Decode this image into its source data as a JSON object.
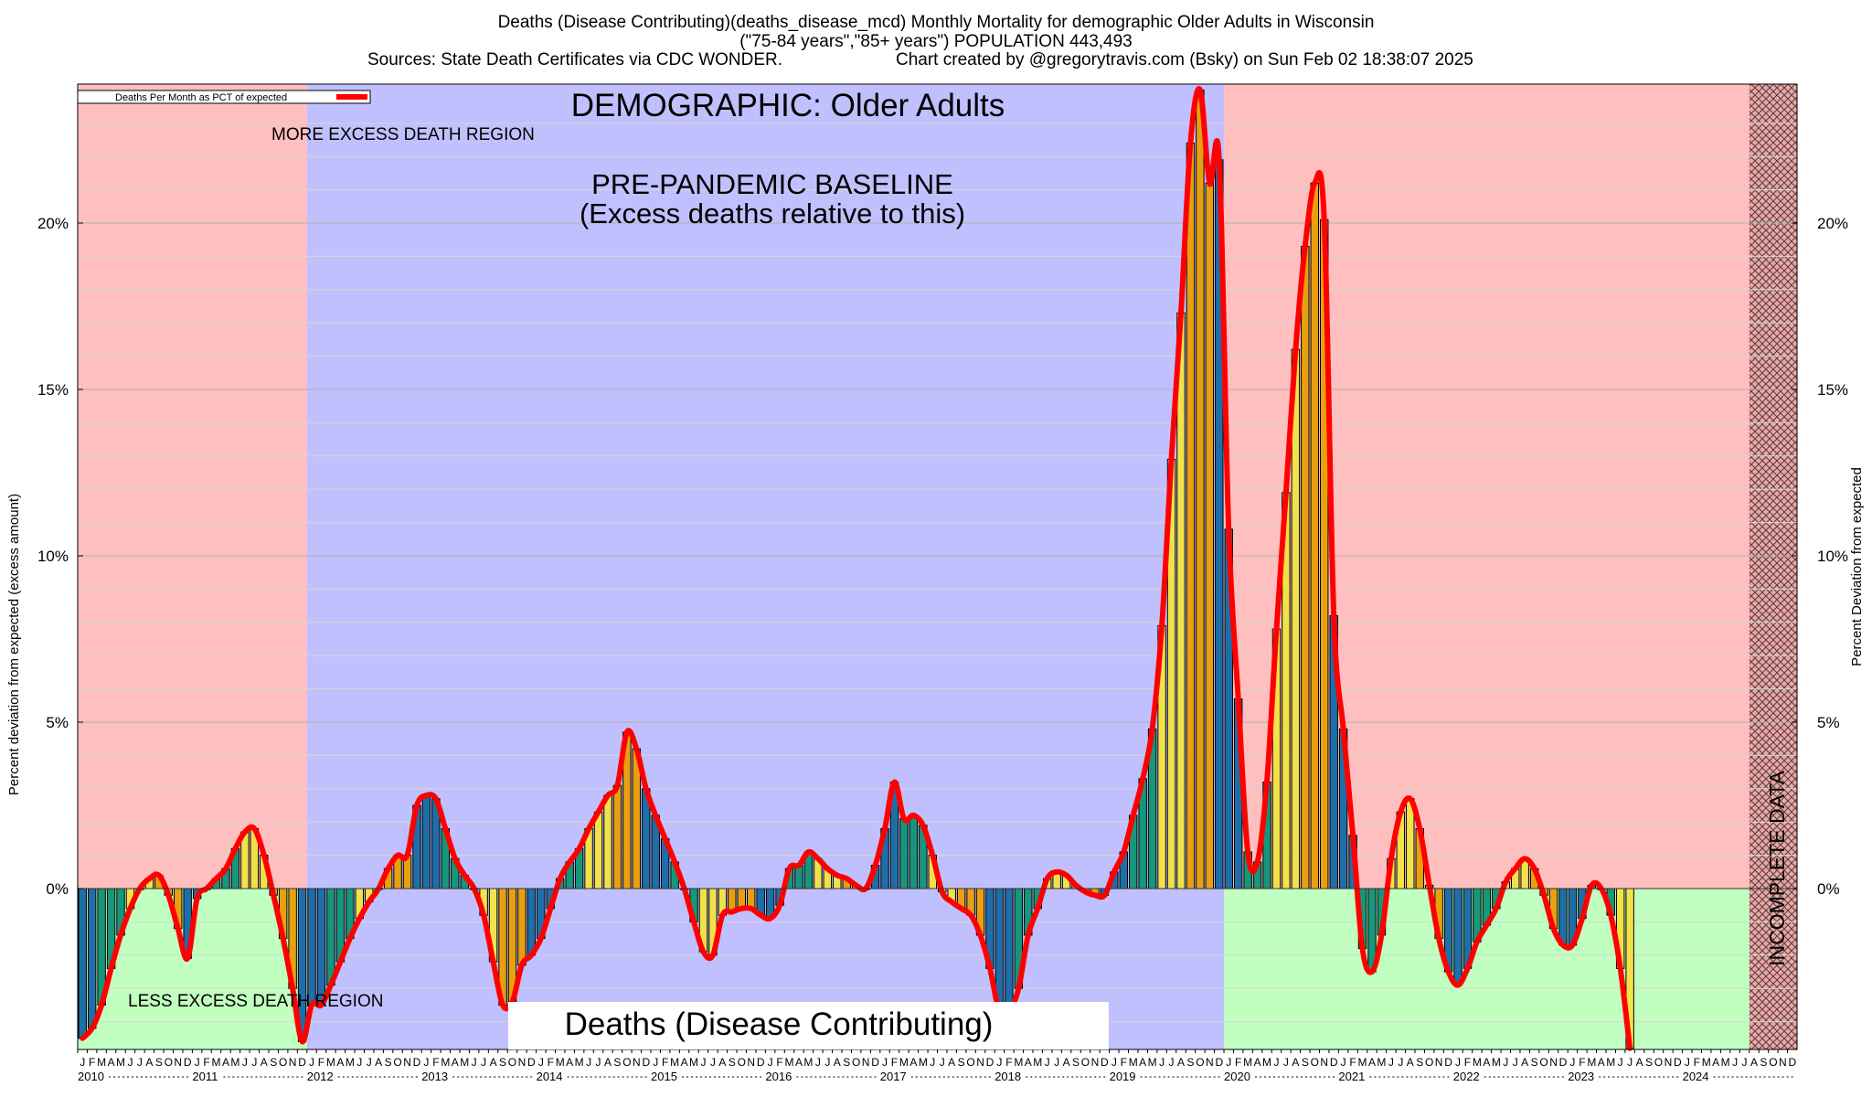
{
  "header": {
    "line1": "Deaths (Disease Contributing)(deaths_disease_mcd) Monthly Mortality for demographic Older Adults in Wisconsin",
    "line2": "(\"75-84 years\",\"85+ years\") POPULATION 443,493",
    "line3_left": "Sources: State Death Certificates via CDC WONDER.",
    "line3_right": "Chart created by @gregorytravis.com (Bsky) on Sun Feb 02 18:38:07 2025"
  },
  "annotations": {
    "demographic": "DEMOGRAPHIC: Older Adults",
    "baseline_line1": "PRE-PANDEMIC BASELINE",
    "baseline_line2": "(Excess deaths relative to this)",
    "more_excess": "MORE EXCESS DEATH REGION",
    "less_excess": "LESS EXCESS DEATH REGION",
    "incomplete": "INCOMPLETE DATA",
    "bottom_label": "Deaths (Disease Contributing)"
  },
  "chart_data": {
    "type": "bar",
    "title": "Deaths (Disease Contributing)(deaths_disease_mcd) Monthly Mortality for demographic Older Adults in Wisconsin",
    "ylabel_left": "Percent deviation from expected (excess amount)",
    "ylabel_right": "Percent Deviation from expected",
    "legend": {
      "label": "Deaths Per Month as PCT of expected",
      "position": "top-left"
    },
    "ylim": [
      -4.8,
      24.0
    ],
    "y_ticks": [
      0,
      5,
      10,
      15,
      20
    ],
    "y_tick_labels": [
      "0%",
      "5%",
      "10%",
      "15%",
      "20%"
    ],
    "years": [
      "2010",
      "2011",
      "2012",
      "2013",
      "2014",
      "2015",
      "2016",
      "2017",
      "2018",
      "2019",
      "2020",
      "2021",
      "2022",
      "2023",
      "2024"
    ],
    "month_letters": [
      "J",
      "F",
      "M",
      "A",
      "M",
      "J",
      "J",
      "A",
      "S",
      "O",
      "N",
      "D"
    ],
    "x_start": "2010-01",
    "regions": [
      {
        "label": "more/less excess death region",
        "from": "2010-01",
        "to": "2011-12"
      },
      {
        "label": "pre-pandemic baseline",
        "from": "2012-01",
        "to": "2019-12"
      },
      {
        "label": "more/less excess death region",
        "from": "2020-01",
        "to": "2024-07"
      },
      {
        "label": "incomplete data",
        "from": "2024-08",
        "to": "2024-12"
      }
    ],
    "bar_colors": {
      "winter": "#1f6ea8",
      "spring": "#16967a",
      "summer": "#f2e24a",
      "autumn": "#e8a010"
    },
    "line_color": "#ff0000",
    "colors": {
      "excess_region": "#ffbfbf",
      "deficit_region": "#c0ffc0",
      "baseline_region": "#c0c0ff"
    },
    "values": [
      -4.5,
      -4.2,
      -3.5,
      -2.4,
      -1.4,
      -0.6,
      0.0,
      0.3,
      0.4,
      -0.2,
      -1.2,
      -2.1,
      -0.3,
      0.0,
      0.3,
      0.6,
      1.2,
      1.7,
      1.8,
      1.0,
      -0.2,
      -1.5,
      -3.0,
      -4.6,
      -3.5,
      -3.5,
      -2.9,
      -2.2,
      -1.5,
      -0.9,
      -0.4,
      0.0,
      0.6,
      1.0,
      1.0,
      2.5,
      2.8,
      2.7,
      1.8,
      0.9,
      0.4,
      0.0,
      -0.8,
      -2.2,
      -3.5,
      -3.4,
      -2.3,
      -2.0,
      -1.5,
      -0.6,
      0.3,
      0.8,
      1.2,
      1.8,
      2.3,
      2.8,
      3.1,
      4.7,
      4.2,
      3.0,
      2.2,
      1.5,
      0.8,
      0.0,
      -1.0,
      -1.9,
      -2.0,
      -0.8,
      -0.7,
      -0.6,
      -0.6,
      -0.8,
      -0.9,
      -0.5,
      0.6,
      0.7,
      1.1,
      0.9,
      0.6,
      0.4,
      0.3,
      0.1,
      0.0,
      0.7,
      1.8,
      3.2,
      2.1,
      2.2,
      1.9,
      1.0,
      -0.1,
      -0.4,
      -0.6,
      -0.8,
      -1.4,
      -2.4,
      -3.7,
      -3.7,
      -3.0,
      -1.4,
      -0.6,
      0.3,
      0.5,
      0.4,
      0.1,
      -0.1,
      -0.2,
      -0.2,
      0.5,
      1.1,
      2.2,
      3.3,
      4.8,
      7.9,
      12.9,
      17.3,
      22.4,
      24.0,
      21.2,
      21.9,
      10.8,
      5.7,
      1.1,
      0.8,
      3.2,
      7.8,
      11.9,
      16.2,
      19.3,
      21.2,
      20.1,
      8.2,
      4.8,
      1.6,
      -1.8,
      -2.5,
      -1.4,
      0.9,
      2.3,
      2.7,
      1.8,
      0.1,
      -1.5,
      -2.5,
      -2.9,
      -2.4,
      -1.6,
      -1.1,
      -0.6,
      0.2,
      0.6,
      0.9,
      0.6,
      -0.2,
      -1.2,
      -1.7,
      -1.7,
      -0.9,
      0.1,
      0.0,
      -0.8,
      -2.4,
      -4.8
    ]
  }
}
